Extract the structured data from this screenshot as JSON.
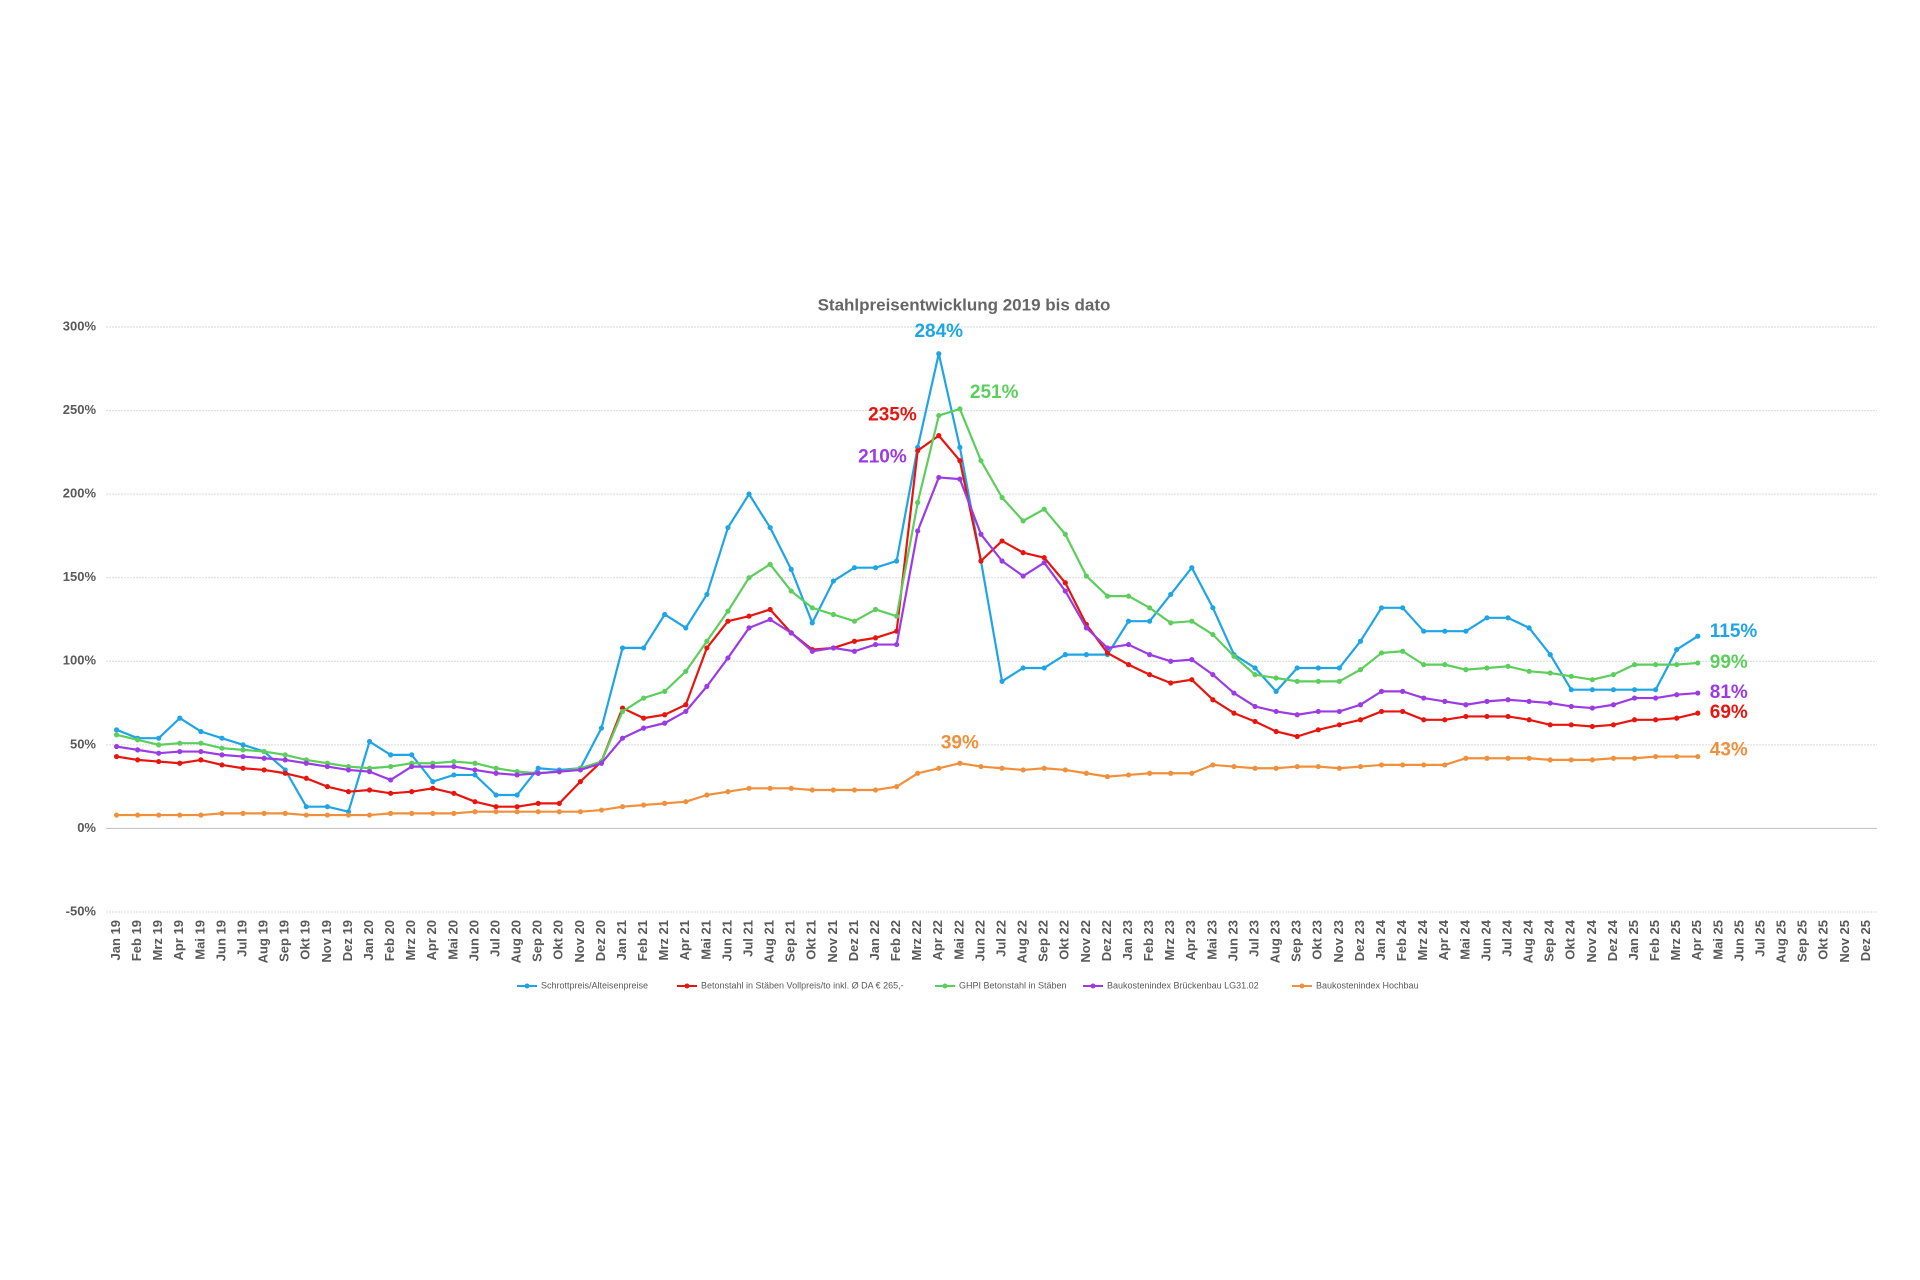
{
  "chart_data": {
    "type": "line",
    "title": "Stahlpreisentwicklung 2019 bis dato",
    "categories": [
      "Jan 19",
      "Feb 19",
      "Mrz 19",
      "Apr 19",
      "Mai 19",
      "Jun 19",
      "Jul 19",
      "Aug 19",
      "Sep 19",
      "Okt 19",
      "Nov 19",
      "Dez 19",
      "Jan 20",
      "Feb 20",
      "Mrz 20",
      "Apr 20",
      "Mai 20",
      "Jun 20",
      "Jul 20",
      "Aug 20",
      "Sep 20",
      "Okt 20",
      "Nov 20",
      "Dez 20",
      "Jan 21",
      "Feb 21",
      "Mrz 21",
      "Apr 21",
      "Mai 21",
      "Jun 21",
      "Jul 21",
      "Aug 21",
      "Sep 21",
      "Okt 21",
      "Nov 21",
      "Dez 21",
      "Jan 22",
      "Feb 22",
      "Mrz 22",
      "Apr 22",
      "Mai 22",
      "Jun 22",
      "Jul 22",
      "Aug 22",
      "Sep 22",
      "Okt 22",
      "Nov 22",
      "Dez 22",
      "Jan 23",
      "Feb 23",
      "Mrz 23",
      "Apr 23",
      "Mai 23",
      "Jun 23",
      "Jul 23",
      "Aug 23",
      "Sep 23",
      "Okt 23",
      "Nov 23",
      "Dez 23",
      "Jan 24",
      "Feb 24",
      "Mrz 24",
      "Apr 24",
      "Mai 24",
      "Jun 24",
      "Jul 24",
      "Aug 24",
      "Sep 24",
      "Okt 24",
      "Nov 24",
      "Dez 24",
      "Jan 25",
      "Feb 25",
      "Mrz 25",
      "Apr 25",
      "Mai 25",
      "Jun 25",
      "Jul 25",
      "Aug 25",
      "Sep 25",
      "Okt 25",
      "Nov 25",
      "Dez 25"
    ],
    "series": [
      {
        "name": "Schrottpreis/Alteisenpreise",
        "color": "#1fa5e6",
        "values": [
          59,
          54,
          54,
          66,
          58,
          54,
          50,
          46,
          35,
          13,
          13,
          10,
          52,
          44,
          44,
          28,
          32,
          32,
          20,
          20,
          36,
          35,
          36,
          60,
          108,
          108,
          128,
          120,
          140,
          180,
          200,
          180,
          155,
          123,
          148,
          156,
          156,
          160,
          228,
          284,
          228,
          160,
          88,
          96,
          96,
          104,
          104,
          104,
          124,
          124,
          140,
          156,
          132,
          104,
          96,
          82,
          96,
          96,
          96,
          112,
          132,
          132,
          118,
          118,
          118,
          126,
          126,
          120,
          104,
          83,
          83,
          83,
          83,
          83,
          107,
          115,
          null,
          null,
          null,
          null,
          null,
          null,
          null,
          null
        ]
      },
      {
        "name": "Betonstahl in Stäben Vollpreis/to inkl. Ø DA € 265,-",
        "color": "#e8150f",
        "values": [
          43,
          41,
          40,
          39,
          41,
          38,
          36,
          35,
          33,
          30,
          25,
          22,
          23,
          21,
          22,
          24,
          21,
          16,
          13,
          13,
          15,
          15,
          28,
          40,
          72,
          66,
          68,
          74,
          108,
          124,
          127,
          131,
          117,
          107,
          108,
          112,
          114,
          118,
          226,
          235,
          220,
          160,
          172,
          165,
          162,
          147,
          122,
          105,
          98,
          92,
          87,
          89,
          77,
          69,
          64,
          58,
          55,
          59,
          62,
          65,
          70,
          70,
          65,
          65,
          67,
          67,
          67,
          65,
          62,
          62,
          61,
          62,
          65,
          65,
          66,
          69,
          null,
          null,
          null,
          null,
          null,
          null,
          null,
          null
        ]
      },
      {
        "name": "GHPI Betonstahl in Stäben",
        "color": "#5cce5c",
        "values": [
          56,
          53,
          50,
          51,
          51,
          48,
          47,
          46,
          44,
          41,
          39,
          37,
          36,
          37,
          39,
          39,
          40,
          39,
          36,
          34,
          33,
          34,
          36,
          40,
          70,
          78,
          82,
          94,
          112,
          130,
          150,
          158,
          142,
          132,
          128,
          124,
          131,
          127,
          195,
          247,
          251,
          220,
          198,
          184,
          191,
          176,
          151,
          139,
          139,
          132,
          123,
          124,
          116,
          103,
          92,
          90,
          88,
          88,
          88,
          95,
          105,
          106,
          98,
          98,
          95,
          96,
          97,
          94,
          93,
          91,
          89,
          92,
          98,
          98,
          98,
          99,
          null,
          null,
          null,
          null,
          null,
          null,
          null,
          null
        ]
      },
      {
        "name": "Baukostenindex Brückenbau LG31.02",
        "color": "#9b3be6",
        "values": [
          49,
          47,
          45,
          46,
          46,
          44,
          43,
          42,
          41,
          39,
          37,
          35,
          34,
          29,
          37,
          37,
          37,
          35,
          33,
          32,
          33,
          34,
          35,
          39,
          54,
          60,
          63,
          70,
          85,
          102,
          120,
          125,
          117,
          106,
          108,
          106,
          110,
          110,
          178,
          210,
          209,
          176,
          160,
          151,
          159,
          142,
          120,
          108,
          110,
          104,
          100,
          101,
          92,
          81,
          73,
          70,
          68,
          70,
          70,
          74,
          82,
          82,
          78,
          76,
          74,
          76,
          77,
          76,
          75,
          73,
          72,
          74,
          78,
          78,
          80,
          81,
          null,
          null,
          null,
          null,
          null,
          null,
          null,
          null
        ]
      },
      {
        "name": "Baukostenindex Hochbau",
        "color": "#f0903c",
        "values": [
          8,
          8,
          8,
          8,
          8,
          9,
          9,
          9,
          9,
          8,
          8,
          8,
          8,
          9,
          9,
          9,
          9,
          10,
          10,
          10,
          10,
          10,
          10,
          11,
          13,
          14,
          15,
          16,
          20,
          22,
          24,
          24,
          24,
          23,
          23,
          23,
          23,
          25,
          33,
          36,
          39,
          37,
          36,
          35,
          36,
          35,
          33,
          31,
          32,
          33,
          33,
          33,
          38,
          37,
          36,
          36,
          37,
          37,
          36,
          37,
          38,
          38,
          38,
          38,
          42,
          42,
          42,
          42,
          41,
          41,
          41,
          42,
          42,
          43,
          43,
          43,
          null,
          null,
          null,
          null,
          null,
          null,
          null,
          null
        ]
      }
    ],
    "ylim": [
      -50,
      300
    ],
    "yticks": [
      {
        "value": -50,
        "label": "-50%"
      },
      {
        "value": 0,
        "label": "0%"
      },
      {
        "value": 50,
        "label": "50%"
      },
      {
        "value": 100,
        "label": "100%"
      },
      {
        "value": 150,
        "label": "150%"
      },
      {
        "value": 200,
        "label": "200%"
      },
      {
        "value": 250,
        "label": "250%"
      },
      {
        "value": 300,
        "label": "300%"
      }
    ],
    "grid": true,
    "legend": "bottom",
    "annotations": [
      {
        "label": "284%",
        "value": 284,
        "x": "Apr 22",
        "color": "#1fa5e6"
      },
      {
        "label": "251%",
        "value": 251,
        "x": "Mai 22",
        "color": "#5cce5c"
      },
      {
        "label": "235%",
        "value": 235,
        "x": "Apr 22",
        "color": "#e8150f"
      },
      {
        "label": "210%",
        "value": 210,
        "x": "Apr 22",
        "color": "#9b3be6"
      },
      {
        "label": "39%",
        "value": 39,
        "x": "Mai 22",
        "color": "#f0903c"
      },
      {
        "label": "115%",
        "value": 115,
        "x": "Apr 25",
        "color": "#1fa5e6"
      },
      {
        "label": "99%",
        "value": 99,
        "x": "Apr 25",
        "color": "#5cce5c"
      },
      {
        "label": "81%",
        "value": 81,
        "x": "Apr 25",
        "color": "#9b3be6"
      },
      {
        "label": "69%",
        "value": 69,
        "x": "Apr 25",
        "color": "#e8150f"
      },
      {
        "label": "43%",
        "value": 43,
        "x": "Apr 25",
        "color": "#f0903c"
      }
    ]
  }
}
